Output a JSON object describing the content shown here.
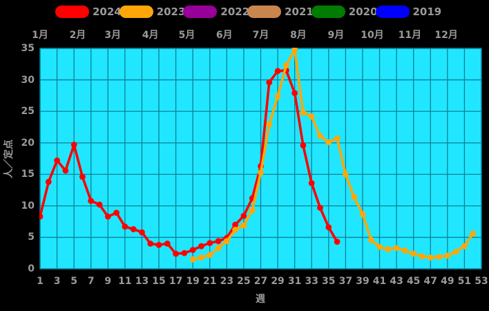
{
  "page": {
    "background": "#000000",
    "label_color": "#9a9a9a"
  },
  "legend": {
    "items": [
      {
        "label": "2024",
        "color": "#ff0000"
      },
      {
        "label": "2023",
        "color": "#ffa709"
      },
      {
        "label": "2022",
        "color": "#990099"
      },
      {
        "label": "2021",
        "color": "#c9854e"
      },
      {
        "label": "2020",
        "color": "#007d00"
      },
      {
        "label": "2019",
        "color": "#0000ff"
      }
    ]
  },
  "chart_data": {
    "type": "line",
    "title": "",
    "xlabel": "週",
    "ylabel": "人／定点",
    "xlim": [
      1,
      53
    ],
    "ylim": [
      0,
      35
    ],
    "grid": true,
    "plot_bg": "#20e7ff",
    "grid_color": "#0b7f99",
    "x_ticks": [
      1,
      3,
      5,
      7,
      9,
      11,
      13,
      15,
      17,
      19,
      21,
      23,
      25,
      27,
      29,
      31,
      33,
      35,
      37,
      39,
      41,
      43,
      45,
      47,
      49,
      51,
      53
    ],
    "y_ticks": [
      0,
      5,
      10,
      15,
      20,
      25,
      30,
      35
    ],
    "month_labels": [
      {
        "label": "1月",
        "week": 1.0
      },
      {
        "label": "2月",
        "week": 5.43
      },
      {
        "label": "3月",
        "week": 9.57
      },
      {
        "label": "4月",
        "week": 14.0
      },
      {
        "label": "5月",
        "week": 18.29
      },
      {
        "label": "6月",
        "week": 22.71
      },
      {
        "label": "7月",
        "week": 27.0
      },
      {
        "label": "8月",
        "week": 31.43
      },
      {
        "label": "9月",
        "week": 35.86
      },
      {
        "label": "10月",
        "week": 40.14
      },
      {
        "label": "11月",
        "week": 44.57
      },
      {
        "label": "12月",
        "week": 48.86
      }
    ],
    "series": [
      {
        "name": "2024",
        "color": "#ff0000",
        "start_week": 1,
        "values": [
          8.3,
          13.8,
          17.2,
          15.6,
          19.7,
          14.6,
          10.8,
          10.2,
          8.3,
          8.9,
          6.7,
          6.3,
          5.8,
          4.0,
          3.8,
          4.0,
          2.4,
          2.5,
          3.0,
          3.6,
          4.1,
          4.4,
          4.9,
          7.0,
          8.4,
          11.2,
          16.3,
          29.6,
          31.4,
          31.5,
          27.9,
          19.6,
          13.6,
          9.7,
          6.6,
          4.3
        ]
      },
      {
        "name": "2023",
        "color": "#ffa709",
        "start_week": 19,
        "values": [
          1.5,
          1.8,
          2.2,
          3.3,
          4.4,
          6.2,
          6.9,
          9.3,
          15.3,
          22.9,
          27.4,
          32.3,
          34.8,
          24.8,
          24.2,
          21.1,
          20.1,
          20.7,
          15.0,
          11.4,
          8.7,
          4.6,
          3.5,
          3.1,
          3.3,
          2.9,
          2.4,
          2.0,
          1.8,
          1.9,
          2.1,
          2.7,
          3.6,
          5.6
        ]
      },
      {
        "name": "2022",
        "color": "#990099",
        "start_week": 1,
        "values": []
      },
      {
        "name": "2021",
        "color": "#c9854e",
        "start_week": 1,
        "values": []
      },
      {
        "name": "2020",
        "color": "#007d00",
        "start_week": 1,
        "values": []
      },
      {
        "name": "2019",
        "color": "#0000ff",
        "start_week": 1,
        "values": []
      }
    ]
  }
}
